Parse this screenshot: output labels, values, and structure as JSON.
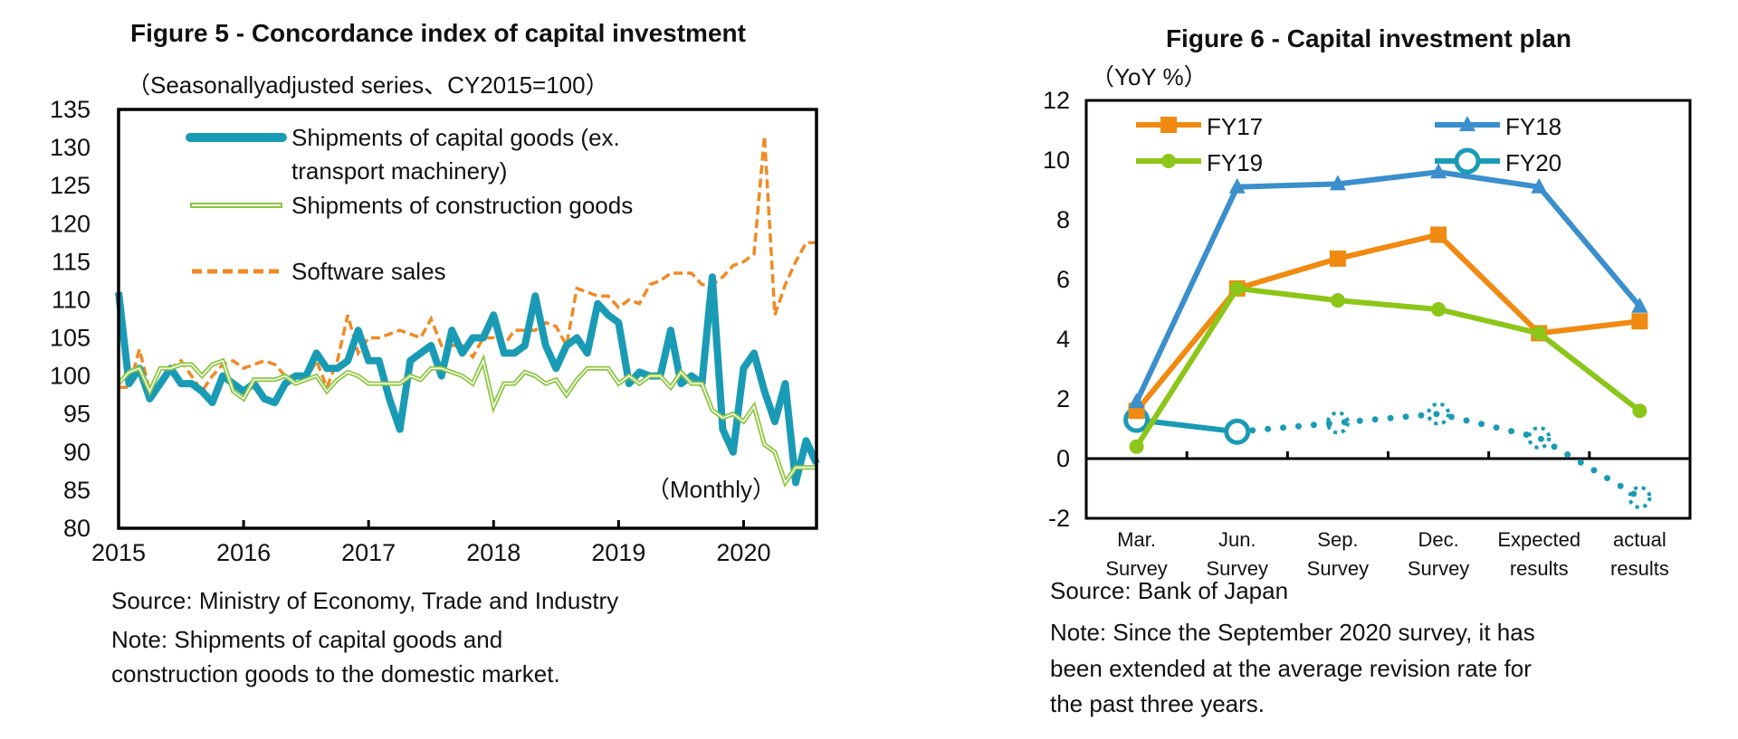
{
  "chart_data": [
    {
      "type": "line",
      "title": "Figure  5 - Concordance index of capital investment",
      "subtitle": "（Seasonallyadjusted series、CY2015=100）",
      "annotation": "（Monthly）",
      "xlabel": "",
      "ylabel": "",
      "ylim": [
        80,
        135
      ],
      "yticks": [
        "80",
        "85",
        "90",
        "95",
        "100",
        "105",
        "110",
        "115",
        "120",
        "125",
        "130",
        "135"
      ],
      "xticks": [
        "2015",
        "2016",
        "2017",
        "2018",
        "2019",
        "2020"
      ],
      "x_start": "2015-01",
      "x_end": "2020-08",
      "frequency": "monthly",
      "grid": false,
      "legend_placement": "top-left",
      "series": [
        {
          "name": "Shipments of capital goods (ex. transport machinery)",
          "name_lines": [
            "Shipments of capital goods (ex.",
            "transport machinery)"
          ],
          "color": "#1a9bb5",
          "style": "thick-solid",
          "values": [
            111,
            99,
            101,
            97,
            99,
            101,
            99,
            99,
            98,
            96.5,
            100,
            99,
            98,
            99,
            97,
            96.5,
            99,
            100,
            100,
            103,
            101,
            101,
            102,
            106,
            102,
            102,
            97,
            93,
            102,
            103,
            104,
            100,
            106,
            103,
            105,
            105,
            108,
            103,
            103,
            104,
            110.5,
            104,
            101,
            104,
            105,
            103,
            109.5,
            108,
            107,
            99,
            100.5,
            100,
            100,
            106,
            99,
            100,
            99,
            113,
            93,
            90,
            101,
            103,
            98,
            94,
            99,
            86,
            91.5,
            88.5
          ]
        },
        {
          "name": "Shipments of construction goods",
          "color": "#8cc63f",
          "style": "double-line",
          "values": [
            99,
            100.5,
            101,
            98,
            101,
            101,
            101.5,
            101.5,
            100,
            101.5,
            102,
            98,
            97,
            99.5,
            99.5,
            99.5,
            100,
            99,
            99.5,
            100,
            98,
            99.5,
            100.5,
            100,
            99,
            99,
            99,
            99,
            100,
            99.5,
            101,
            101,
            100.5,
            100,
            99,
            102,
            96,
            99,
            99,
            100.5,
            100,
            99,
            99.5,
            97.5,
            99.5,
            101,
            101,
            101,
            99,
            100,
            99,
            100,
            100,
            98.5,
            100.5,
            99,
            99,
            95.5,
            94.5,
            95,
            94,
            96,
            91,
            90,
            86,
            88,
            88,
            88
          ]
        },
        {
          "name": "Software sales",
          "color": "#f08a24",
          "style": "dashed",
          "values": [
            98.5,
            98.5,
            103.5,
            98,
            99,
            101,
            102,
            100,
            98,
            100,
            101.5,
            102,
            101,
            101.5,
            102,
            101.5,
            100,
            100,
            99.5,
            102,
            98.5,
            102,
            108,
            103,
            105,
            105,
            105.5,
            106,
            105.5,
            105,
            107.5,
            104,
            104,
            104,
            102.5,
            105,
            105,
            104,
            106,
            106,
            106,
            107,
            106.5,
            104,
            111.5,
            111,
            110.5,
            110.5,
            109,
            110,
            109.5,
            112,
            112.5,
            113.5,
            113.5,
            113.5,
            112,
            112,
            113,
            114.5,
            115,
            116,
            131.5,
            108,
            112,
            115,
            117.5,
            117.5
          ]
        }
      ],
      "source": "Source: Ministry of Economy, Trade and Industry",
      "note_lines": [
        "Note: Shipments of capital goods and",
        "construction goods to the domestic market."
      ]
    },
    {
      "type": "line",
      "title": "Figure  6 - Capital  investment plan",
      "ylabel": "（YoY %）",
      "ylim": [
        -2,
        12
      ],
      "yticks": [
        "-2",
        "0",
        "2",
        "4",
        "6",
        "8",
        "10",
        "12"
      ],
      "categories": [
        [
          "Mar.",
          "Survey"
        ],
        [
          "Jun.",
          "Survey"
        ],
        [
          "Sep.",
          "Survey"
        ],
        [
          "Dec.",
          "Survey"
        ],
        [
          "Expected",
          "results"
        ],
        [
          "actual",
          "results"
        ]
      ],
      "grid": false,
      "legend_placement": "top",
      "series": [
        {
          "name": "FY17",
          "color": "#f08a10",
          "marker": "square",
          "values": [
            1.6,
            5.7,
            6.7,
            7.5,
            4.2,
            4.6
          ]
        },
        {
          "name": "FY18",
          "color": "#3a8fcc",
          "marker": "triangle",
          "values": [
            1.9,
            9.1,
            9.2,
            9.6,
            9.1,
            5.1
          ]
        },
        {
          "name": "FY19",
          "color": "#8cc618",
          "marker": "circle",
          "values": [
            0.4,
            5.7,
            5.3,
            5.0,
            4.2,
            1.6
          ]
        },
        {
          "name": "FY20",
          "color": "#1a9bb5",
          "marker": "hollow-circle",
          "values": [
            1.3,
            0.9,
            1.2,
            1.5,
            0.7,
            -1.3
          ],
          "estimated_from_index": 2
        }
      ],
      "source": "Source: Bank of Japan",
      "note_lines": [
        "Note: Since the September 2020 survey, it has",
        "been extended at the average revision rate for",
        "the past three years."
      ]
    }
  ]
}
